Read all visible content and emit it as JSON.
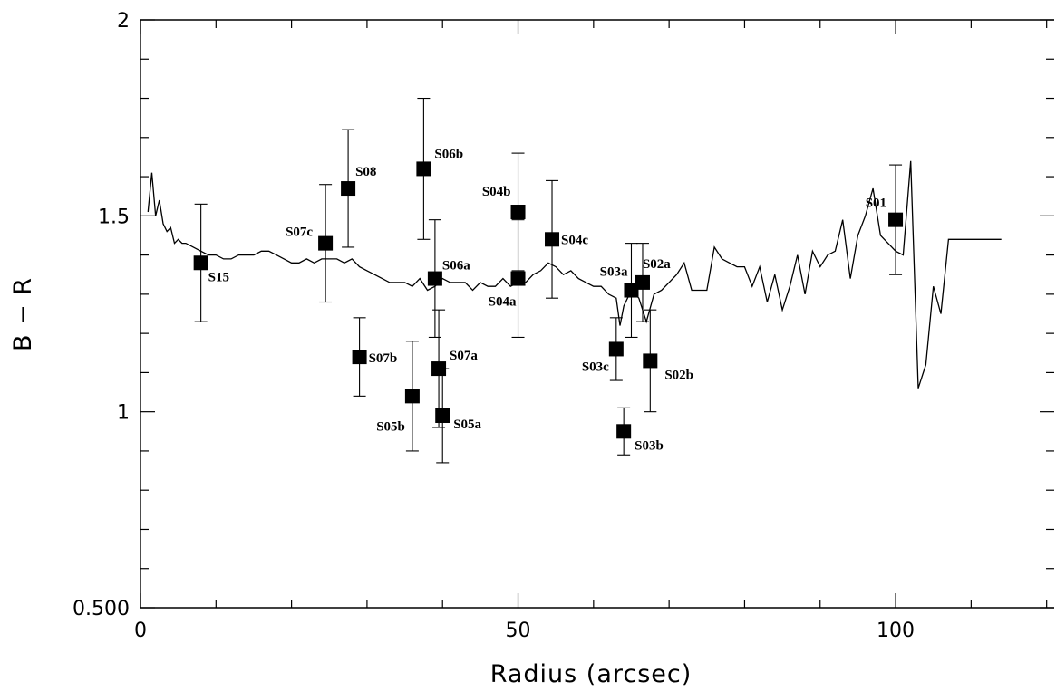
{
  "chart_data": {
    "type": "scatter",
    "xlabel": "Radius (arcsec)",
    "ylabel": "B − R",
    "xlim": [
      0,
      121
    ],
    "ylim": [
      0.5,
      2
    ],
    "x_ticks": [
      0,
      50,
      100
    ],
    "y_ticks": [
      0.5,
      1,
      1.5,
      2
    ],
    "x_tick_labels": [
      "0",
      "50",
      "100"
    ],
    "y_tick_labels": [
      "0.500",
      "1",
      "1.5",
      "2"
    ],
    "grid": false,
    "legend": "none",
    "series": [
      {
        "kind": "line",
        "x": [
          1,
          1.5,
          2,
          2.5,
          3,
          3.5,
          4,
          4.5,
          5,
          5.5,
          6,
          7,
          8,
          9,
          10,
          11,
          12,
          13,
          14,
          15,
          16,
          17,
          18,
          19,
          20,
          21,
          22,
          23,
          24,
          25,
          26,
          27,
          28,
          29,
          30,
          31,
          32,
          33,
          34,
          35,
          36,
          37,
          38,
          39,
          40,
          41,
          42,
          43,
          44,
          45,
          46,
          47,
          48,
          49,
          50,
          51,
          52,
          53,
          54,
          55,
          56,
          57,
          58,
          59,
          60,
          61,
          62,
          63,
          63.5,
          64,
          65,
          66,
          67,
          68,
          69,
          70,
          71,
          72,
          73,
          74,
          75,
          76,
          77,
          78,
          79,
          80,
          81,
          82,
          83,
          84,
          85,
          86,
          87,
          88,
          89,
          90,
          91,
          92,
          93,
          94,
          95,
          96,
          97,
          98,
          99,
          100,
          101,
          102,
          103,
          104,
          105,
          106,
          107,
          108,
          109,
          110,
          111,
          112,
          113,
          114
        ],
        "y": [
          1.51,
          1.61,
          1.5,
          1.54,
          1.48,
          1.46,
          1.47,
          1.43,
          1.44,
          1.43,
          1.43,
          1.42,
          1.41,
          1.4,
          1.4,
          1.39,
          1.39,
          1.4,
          1.4,
          1.4,
          1.41,
          1.41,
          1.4,
          1.39,
          1.38,
          1.38,
          1.39,
          1.38,
          1.39,
          1.39,
          1.39,
          1.38,
          1.39,
          1.37,
          1.36,
          1.35,
          1.34,
          1.33,
          1.33,
          1.33,
          1.32,
          1.34,
          1.31,
          1.32,
          1.34,
          1.33,
          1.33,
          1.33,
          1.31,
          1.33,
          1.32,
          1.32,
          1.34,
          1.32,
          1.33,
          1.33,
          1.35,
          1.36,
          1.38,
          1.37,
          1.35,
          1.36,
          1.34,
          1.33,
          1.32,
          1.32,
          1.3,
          1.29,
          1.22,
          1.27,
          1.31,
          1.29,
          1.23,
          1.3,
          1.31,
          1.33,
          1.35,
          1.38,
          1.31,
          1.31,
          1.31,
          1.42,
          1.39,
          1.38,
          1.37,
          1.37,
          1.32,
          1.37,
          1.28,
          1.35,
          1.26,
          1.32,
          1.4,
          1.3,
          1.41,
          1.37,
          1.4,
          1.41,
          1.49,
          1.34,
          1.45,
          1.5,
          1.57,
          1.45,
          1.43,
          1.41,
          1.4,
          1.64,
          1.06,
          1.12,
          1.32,
          1.25,
          1.44,
          1.44,
          1.44,
          1.44,
          1.44,
          1.44,
          1.44,
          1.44
        ]
      },
      {
        "kind": "points",
        "points": [
          {
            "label": "S15",
            "x": 8,
            "y": 1.38,
            "err": 0.15
          },
          {
            "label": "S07c",
            "x": 24.5,
            "y": 1.43,
            "err": 0.15
          },
          {
            "label": "S08",
            "x": 27.5,
            "y": 1.57,
            "err": 0.15
          },
          {
            "label": "S07b",
            "x": 29,
            "y": 1.14,
            "err": 0.1
          },
          {
            "label": "S05b",
            "x": 36,
            "y": 1.04,
            "err": 0.14
          },
          {
            "label": "S06b",
            "x": 37.5,
            "y": 1.62,
            "err": 0.18
          },
          {
            "label": "S06a",
            "x": 39,
            "y": 1.34,
            "err": 0.15
          },
          {
            "label": "S07a",
            "x": 39.5,
            "y": 1.11,
            "err": 0.15
          },
          {
            "label": "S05a",
            "x": 40,
            "y": 0.99,
            "err": 0.12
          },
          {
            "label": "S04b",
            "x": 50,
            "y": 1.51,
            "err": 0.15
          },
          {
            "label": "S04a",
            "x": 50,
            "y": 1.34,
            "err": 0.15
          },
          {
            "label": "S04c",
            "x": 54.5,
            "y": 1.44,
            "err": 0.15
          },
          {
            "label": "S03c",
            "x": 63,
            "y": 1.16,
            "err": 0.08
          },
          {
            "label": "S03b",
            "x": 64,
            "y": 0.95,
            "err": 0.06
          },
          {
            "label": "S03a",
            "x": 65,
            "y": 1.31,
            "err": 0.12
          },
          {
            "label": "S02a",
            "x": 66.5,
            "y": 1.33,
            "err": 0.1
          },
          {
            "label": "S02b",
            "x": 67.5,
            "y": 1.13,
            "err": 0.13
          },
          {
            "label": "S01",
            "x": 100,
            "y": 1.49,
            "err": 0.14
          }
        ]
      }
    ]
  }
}
